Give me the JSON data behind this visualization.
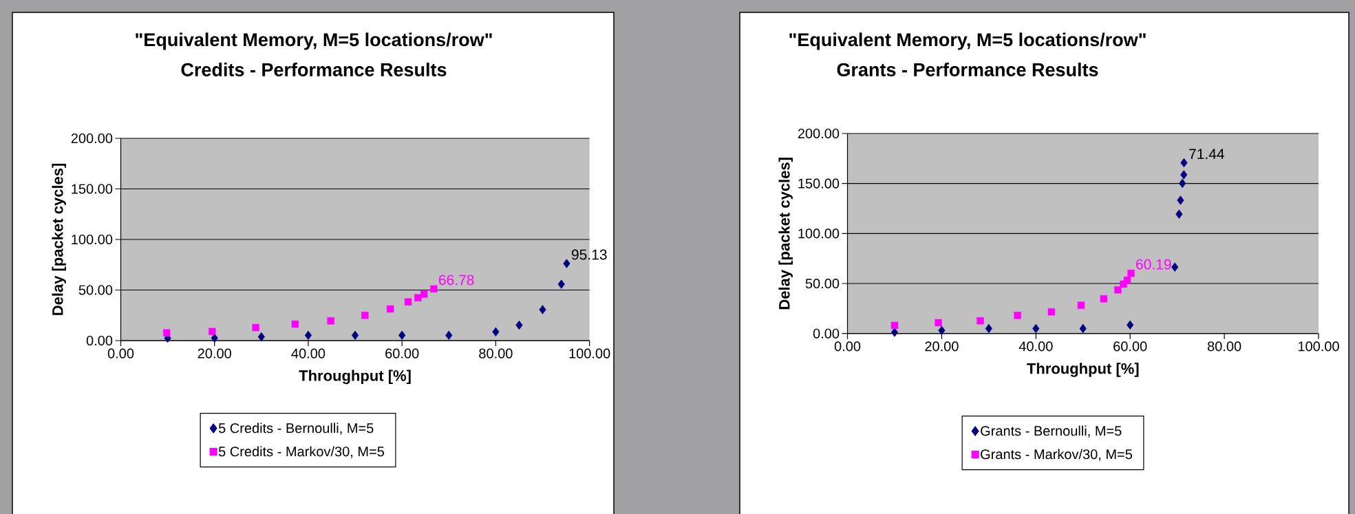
{
  "chart_data": [
    {
      "type": "scatter",
      "title": "\"Equivalent Memory, M=5 locations/row\"",
      "subtitle": "Credits - Performance Results",
      "xlabel": "Throughput [%]",
      "ylabel": "Delay [packet cycles]",
      "xlim": [
        0,
        100
      ],
      "ylim": [
        0,
        200
      ],
      "xticks": [
        {
          "value": 0,
          "label": "0.00"
        },
        {
          "value": 20,
          "label": "20.00"
        },
        {
          "value": 40,
          "label": "40.00"
        },
        {
          "value": 60,
          "label": "60.00"
        },
        {
          "value": 80,
          "label": "80.00"
        },
        {
          "value": 100,
          "label": "100.00"
        }
      ],
      "yticks": [
        {
          "value": 0,
          "label": "0.00"
        },
        {
          "value": 50,
          "label": "50.00"
        },
        {
          "value": 100,
          "label": "100.00"
        },
        {
          "value": 150,
          "label": "150.00"
        },
        {
          "value": 200,
          "label": "200.00"
        }
      ],
      "grid": "y",
      "legend": "bottom",
      "series": [
        {
          "name": "5 Credits - Bernoulli, M=5",
          "color": "#000080",
          "marker": "diamond",
          "x": [
            10,
            20,
            30,
            40,
            50,
            60,
            70,
            80,
            85,
            90,
            94,
            95.13
          ],
          "values": [
            2.4,
            2.5,
            3.8,
            5.2,
            5.2,
            5.2,
            5.2,
            8.7,
            15.3,
            30.6,
            55.7,
            76.2
          ]
        },
        {
          "name": "5 Credits - Markov/30, M=5",
          "color": "#ff00ff",
          "marker": "square",
          "x": [
            9.8,
            19.5,
            28.8,
            37.2,
            44.8,
            52.1,
            57.5,
            61.3,
            63.4,
            64.7,
            66.78
          ],
          "values": [
            7.7,
            9,
            12.9,
            16.3,
            19.5,
            25,
            31.3,
            38.3,
            42.4,
            45.9,
            51.1
          ]
        }
      ],
      "annotations": [
        {
          "text": "95.13",
          "x": 95.13,
          "y": 76.2
        },
        {
          "text": "66.78",
          "x": 66.78,
          "y": 51.1
        }
      ]
    },
    {
      "type": "scatter",
      "title": "\"Equivalent Memory, M=5 locations/row\"",
      "subtitle": "Grants - Performance Results",
      "xlabel": "Throughput [%]",
      "ylabel": "Delay [packet cycles]",
      "xlim": [
        0,
        100
      ],
      "ylim": [
        0,
        200
      ],
      "xticks": [
        {
          "value": 0,
          "label": "0.00"
        },
        {
          "value": 20,
          "label": "20.00"
        },
        {
          "value": 40,
          "label": "40.00"
        },
        {
          "value": 60,
          "label": "60.00"
        },
        {
          "value": 80,
          "label": "80.00"
        },
        {
          "value": 100,
          "label": "100.00"
        }
      ],
      "yticks": [
        {
          "value": 0,
          "label": "0.00"
        },
        {
          "value": 50,
          "label": "50.00"
        },
        {
          "value": 100,
          "label": "100.00"
        },
        {
          "value": 150,
          "label": "150.00"
        },
        {
          "value": 200,
          "label": "200.00"
        }
      ],
      "grid": "y",
      "legend": "bottom",
      "series": [
        {
          "name": "Grants - Bernoulli, M=5",
          "color": "#000080",
          "marker": "diamond",
          "x": [
            10,
            20,
            30,
            40,
            50,
            60,
            69.5,
            70.4,
            70.7,
            71.1,
            71.4,
            71.44
          ],
          "values": [
            1.2,
            3.1,
            5,
            5,
            5,
            8.5,
            66.4,
            119.3,
            133.2,
            150.2,
            158.7,
            170.7
          ]
        },
        {
          "name": "Grants - Markov/30, M=5",
          "color": "#ff00ff",
          "marker": "square",
          "x": [
            10,
            19.3,
            28.2,
            36.1,
            43.3,
            49.6,
            54.4,
            57.4,
            58.6,
            59.4,
            60.19
          ],
          "values": [
            8.1,
            10.8,
            12.7,
            18.1,
            21.6,
            28.2,
            34.7,
            43.6,
            49.4,
            53.3,
            60.2
          ]
        }
      ],
      "annotations": [
        {
          "text": "71.44",
          "x": 71.44,
          "y": 170.7
        },
        {
          "text": "60.19",
          "x": 60.19,
          "y": 60.2
        }
      ]
    }
  ]
}
